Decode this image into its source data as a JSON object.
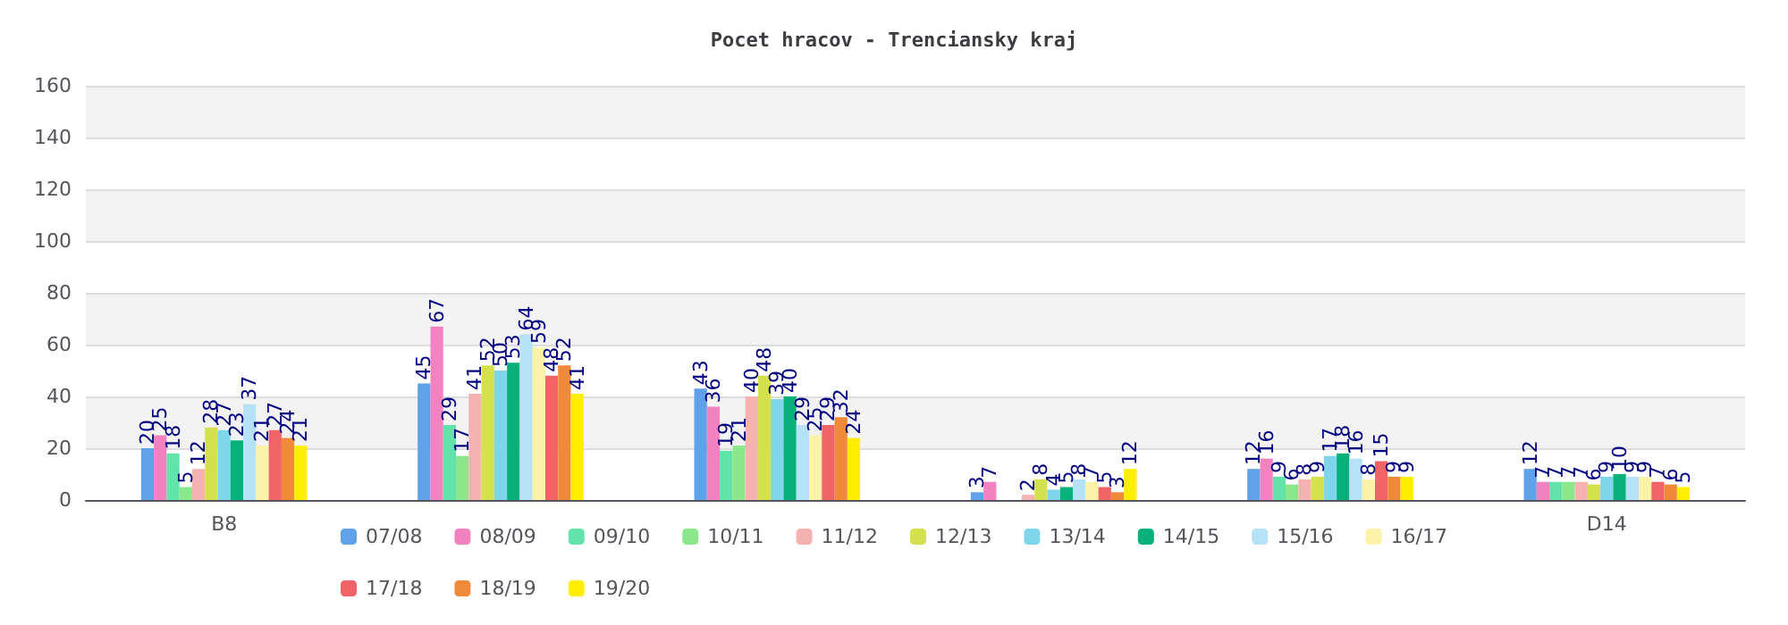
{
  "chart_data": {
    "type": "bar",
    "title": "Pocet hracov - Trenciansky kraj",
    "categories": [
      "B8",
      null,
      null,
      null,
      null,
      "D14"
    ],
    "ylim": [
      0,
      160
    ],
    "yticks": [
      0,
      20,
      40,
      60,
      80,
      100,
      120,
      140,
      160
    ],
    "grid": "y",
    "legend": "bottom",
    "data_labels": true,
    "series": [
      {
        "name": "07/08",
        "color": "#5fa2e8",
        "values": [
          20,
          45,
          43,
          3,
          12,
          12
        ]
      },
      {
        "name": "08/09",
        "color": "#f283c0",
        "values": [
          25,
          67,
          36,
          7,
          16,
          7
        ]
      },
      {
        "name": "09/10",
        "color": "#61e3a9",
        "values": [
          18,
          29,
          19,
          null,
          9,
          7
        ]
      },
      {
        "name": "10/11",
        "color": "#8be88a",
        "values": [
          5,
          17,
          21,
          null,
          6,
          7
        ]
      },
      {
        "name": "11/12",
        "color": "#f5b2b0",
        "values": [
          12,
          41,
          40,
          2,
          8,
          7
        ]
      },
      {
        "name": "12/13",
        "color": "#d4e04c",
        "values": [
          28,
          52,
          48,
          8,
          9,
          6
        ]
      },
      {
        "name": "13/14",
        "color": "#7fd6ea",
        "values": [
          27,
          50,
          39,
          4,
          17,
          9
        ]
      },
      {
        "name": "14/15",
        "color": "#08b07a",
        "values": [
          23,
          53,
          40,
          5,
          18,
          10
        ]
      },
      {
        "name": "15/16",
        "color": "#b5e2f6",
        "values": [
          37,
          64,
          29,
          8,
          16,
          9
        ]
      },
      {
        "name": "16/17",
        "color": "#fdf3a8",
        "values": [
          21,
          59,
          25,
          7,
          8,
          9
        ]
      },
      {
        "name": "17/18",
        "color": "#f06468",
        "values": [
          27,
          48,
          29,
          5,
          15,
          7
        ]
      },
      {
        "name": "18/19",
        "color": "#ef8a3a",
        "values": [
          24,
          52,
          32,
          3,
          9,
          6
        ]
      },
      {
        "name": "19/20",
        "color": "#ffee00",
        "values": [
          21,
          41,
          24,
          12,
          9,
          5
        ]
      }
    ]
  }
}
